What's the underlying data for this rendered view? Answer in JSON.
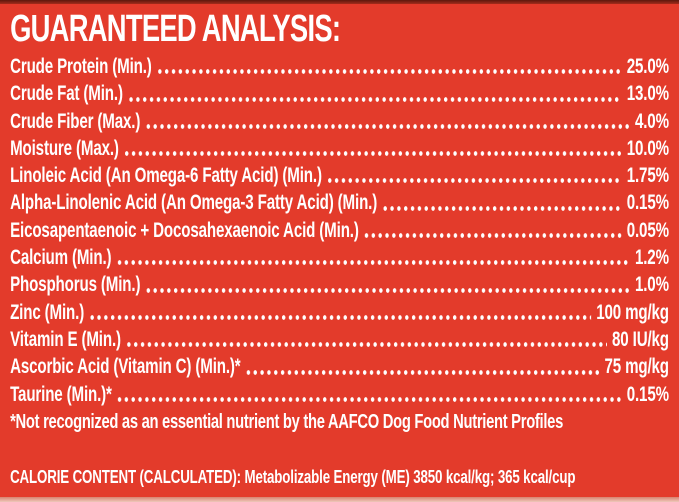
{
  "title": "GUARANTEED ANALYSIS:",
  "rows": [
    {
      "label": "Crude Protein (Min.)",
      "value": "25.0%"
    },
    {
      "label": "Crude Fat (Min.)",
      "value": "13.0%"
    },
    {
      "label": "Crude Fiber (Max.)",
      "value": "4.0%"
    },
    {
      "label": "Moisture (Max.)",
      "value": "10.0%"
    },
    {
      "label": "Linoleic Acid (An Omega-6 Fatty Acid) (Min.)",
      "value": "1.75%"
    },
    {
      "label": "Alpha-Linolenic Acid (An Omega-3 Fatty Acid) (Min.)",
      "value": "0.15%"
    },
    {
      "label": "Eicosapentaenoic + Docosahexaenoic Acid (Min.)",
      "value": "0.05%"
    },
    {
      "label": "Calcium (Min.)",
      "value": "1.2%"
    },
    {
      "label": "Phosphorus (Min.)",
      "value": "1.0%"
    },
    {
      "label": "Zinc (Min.)",
      "value": "100 mg/kg"
    },
    {
      "label": "Vitamin E (Min.)",
      "value": "80 IU/kg"
    },
    {
      "label": "Ascorbic Acid (Vitamin C) (Min.)*",
      "value": "75 mg/kg"
    },
    {
      "label": "Taurine (Min.)*",
      "value": "0.15%"
    }
  ],
  "footnote": "*Not recognized as an essential nutrient by the AAFCO Dog Food Nutrient Profiles",
  "calorie_content": "CALORIE CONTENT (CALCULATED): Metabolizable Energy (ME) 3850 kcal/kg; 365 kcal/cup",
  "colors": {
    "background": "#e33b2b",
    "text": "#ffffff",
    "top_edge": "#5d170d",
    "bottom_edge": "#eec8bb"
  }
}
